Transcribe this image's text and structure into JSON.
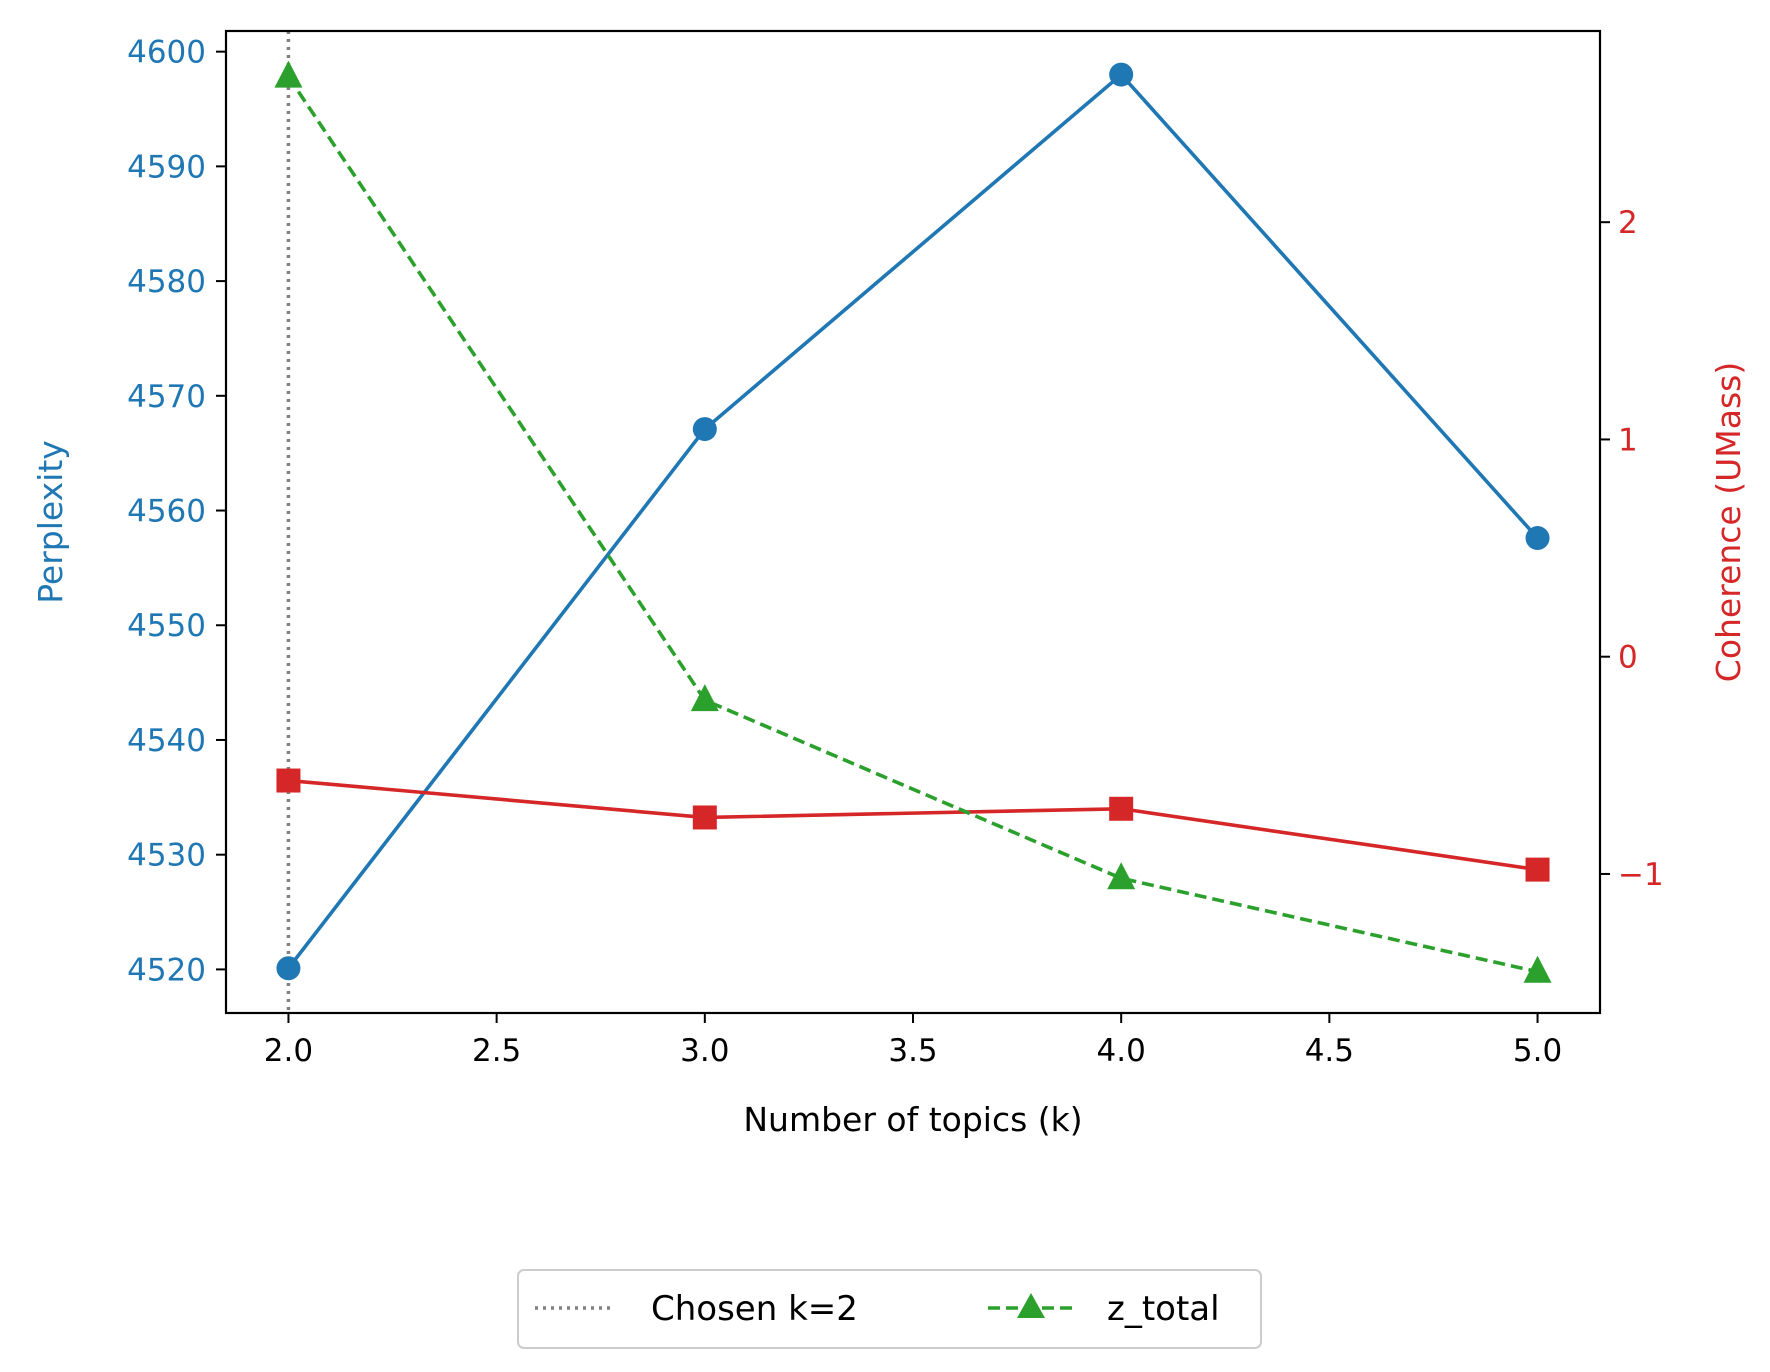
{
  "chart_data": {
    "type": "line",
    "xlabel": "Number of topics (k)",
    "ylabel_left": "Perplexity",
    "ylabel_right": "Coherence (UMass)",
    "xlim": [
      1.85,
      5.15
    ],
    "ylim_left": [
      4516.2,
      4601.8
    ],
    "ylim_right": [
      -1.64,
      2.88
    ],
    "x_ticks": [
      "2.0",
      "2.5",
      "3.0",
      "3.5",
      "4.0",
      "4.5",
      "5.0"
    ],
    "y_left_ticks": [
      "4520",
      "4530",
      "4540",
      "4550",
      "4560",
      "4570",
      "4580",
      "4590",
      "4600"
    ],
    "y_right_ticks": [
      "−1",
      "0",
      "1",
      "2"
    ],
    "chosen_k": 2,
    "series": [
      {
        "name": "Perplexity",
        "axis": "left",
        "color": "#1f77b4",
        "marker": "circle",
        "style": "solid",
        "x": [
          2,
          3,
          4,
          5
        ],
        "values": [
          4520.1,
          4567.1,
          4598.0,
          4557.6
        ]
      },
      {
        "name": "Coherence (UMass)",
        "axis": "right",
        "color": "#d62728",
        "marker": "square",
        "style": "solid",
        "x": [
          2,
          3,
          4,
          5
        ],
        "values": [
          -0.57,
          -0.74,
          -0.7,
          -0.98
        ]
      },
      {
        "name": "z_total",
        "axis": "right",
        "color": "#2ca02c",
        "marker": "triangle",
        "style": "dashed",
        "x": [
          2,
          3,
          4,
          5
        ],
        "values": [
          2.67,
          -0.2,
          -1.02,
          -1.45
        ]
      }
    ],
    "legend": {
      "placement": "bottom-center",
      "entries": [
        {
          "label": "Chosen k=2",
          "color": "#808080",
          "style": "dotted",
          "marker": "none"
        },
        {
          "label": "z_total",
          "color": "#2ca02c",
          "style": "dashed",
          "marker": "triangle"
        }
      ]
    },
    "colors": {
      "left_axis": "#1f77b4",
      "right_axis": "#d62728",
      "chosen_line": "#808080"
    }
  }
}
